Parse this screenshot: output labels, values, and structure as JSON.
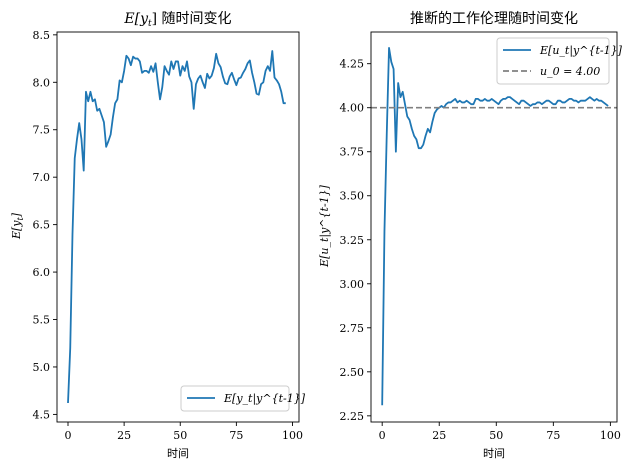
{
  "charts": [
    {
      "title": "E[y_t] 随时间变化",
      "title_math": "E[y",
      "title_sub": "t",
      "title_rest": "] 随时间变化",
      "xlabel": "时间",
      "ylabel": "E[y_t]",
      "ylabel_parts": {
        "main": "E[y",
        "sub": "t",
        "end": "]"
      },
      "legend": {
        "label": "E[y_t|y^{t-1}]",
        "placement": "lower-right"
      },
      "xticks": [
        "0",
        "25",
        "50",
        "75",
        "100"
      ],
      "yticks": [
        "4.5",
        "5.0",
        "5.5",
        "6.0",
        "6.5",
        "7.0",
        "7.5",
        "8.0",
        "8.5"
      ]
    },
    {
      "title": "推断的工作伦理随时间变化",
      "xlabel": "时间",
      "ylabel": "E[u_t|y^{t-1}]",
      "legend": {
        "label": "E[u_t|y^{t-1}]",
        "ref_label": "u_0 = 4.00",
        "placement": "upper-right"
      },
      "xticks": [
        "0",
        "25",
        "50",
        "75",
        "100"
      ],
      "yticks": [
        "2.25",
        "2.50",
        "2.75",
        "3.00",
        "3.25",
        "3.50",
        "3.75",
        "4.00",
        "4.25"
      ]
    }
  ],
  "chart_data": [
    {
      "type": "line",
      "title": "E[y_t] 随时间变化",
      "xlabel": "时间",
      "ylabel": "E[y_t]",
      "xlim": [
        -4.9,
        102.9
      ],
      "ylim": [
        4.42,
        8.53
      ],
      "grid": false,
      "legend_placement": "lower-right",
      "color": "#1f77b4",
      "series": [
        {
          "name": "E[y_t|y^{t-1}]",
          "x": [
            0,
            1,
            2,
            3,
            4,
            5,
            6,
            7,
            8,
            9,
            10,
            11,
            12,
            13,
            14,
            15,
            16,
            17,
            18,
            19,
            20,
            21,
            22,
            23,
            24,
            25,
            26,
            27,
            28,
            29,
            30,
            31,
            32,
            33,
            34,
            35,
            36,
            37,
            38,
            39,
            40,
            41,
            42,
            43,
            44,
            45,
            46,
            47,
            48,
            49,
            50,
            51,
            52,
            53,
            54,
            55,
            56,
            57,
            58,
            59,
            60,
            61,
            62,
            63,
            64,
            65,
            66,
            67,
            68,
            69,
            70,
            71,
            72,
            73,
            74,
            75,
            76,
            77,
            78,
            79,
            80,
            81,
            82,
            83,
            84,
            85,
            86,
            87,
            88,
            89,
            90,
            91,
            92,
            93,
            94,
            95,
            96,
            97
          ],
          "y": [
            4.62,
            5.2,
            6.4,
            7.2,
            7.4,
            7.57,
            7.4,
            7.07,
            7.9,
            7.8,
            7.9,
            7.8,
            7.82,
            7.7,
            7.72,
            7.65,
            7.58,
            7.32,
            7.38,
            7.45,
            7.63,
            7.78,
            7.82,
            8.02,
            8.0,
            8.12,
            8.28,
            8.25,
            8.18,
            8.27,
            8.25,
            8.25,
            8.22,
            8.1,
            8.12,
            8.12,
            8.1,
            8.17,
            8.11,
            8.2,
            8.0,
            7.82,
            7.95,
            8.17,
            8.12,
            8.08,
            8.22,
            8.14,
            8.22,
            8.22,
            8.07,
            8.17,
            8.12,
            8.22,
            8.06,
            8.0,
            7.72,
            7.98,
            8.04,
            8.07,
            8.0,
            7.94,
            8.09,
            8.04,
            8.07,
            8.15,
            8.3,
            8.2,
            8.16,
            8.06,
            7.99,
            7.98,
            8.06,
            8.1,
            8.03,
            7.97,
            8.04,
            8.05,
            8.1,
            8.14,
            8.2,
            8.23,
            8.1,
            8.0,
            7.88,
            7.87,
            7.98,
            8.0,
            8.12,
            8.17,
            8.12,
            8.33,
            8.05,
            8.02,
            7.98,
            7.9,
            7.78,
            7.78
          ]
        }
      ]
    },
    {
      "type": "line",
      "title": "推断的工作伦理随时间变化",
      "xlabel": "时间",
      "ylabel": "E[u_t|y^{t-1}]",
      "xlim": [
        -4.9,
        102.9
      ],
      "ylim": [
        2.215,
        4.43
      ],
      "grid": false,
      "legend_placement": "upper-right",
      "color": "#1f77b4",
      "reference_line": {
        "name": "u_0 = 4.00",
        "y": 4.0,
        "color": "#808080",
        "style": "dashed"
      },
      "series": [
        {
          "name": "E[u_t|y^{t-1}]",
          "x": [
            0,
            1,
            2,
            3,
            4,
            5,
            6,
            7,
            8,
            9,
            10,
            11,
            12,
            13,
            14,
            15,
            16,
            17,
            18,
            19,
            20,
            21,
            22,
            23,
            24,
            25,
            26,
            27,
            28,
            29,
            30,
            31,
            32,
            33,
            34,
            35,
            36,
            37,
            38,
            39,
            40,
            41,
            42,
            43,
            44,
            45,
            46,
            47,
            48,
            49,
            50,
            51,
            52,
            53,
            54,
            55,
            56,
            57,
            58,
            59,
            60,
            61,
            62,
            63,
            64,
            65,
            66,
            67,
            68,
            69,
            70,
            71,
            72,
            73,
            74,
            75,
            76,
            77,
            78,
            79,
            80,
            81,
            82,
            83,
            84,
            85,
            86,
            87,
            88,
            89,
            90,
            91,
            92,
            93,
            94,
            95,
            96,
            97,
            98,
            99
          ],
          "y": [
            2.31,
            3.3,
            3.85,
            4.34,
            4.26,
            4.22,
            3.75,
            4.14,
            4.06,
            4.09,
            4.02,
            3.95,
            3.93,
            3.88,
            3.84,
            3.82,
            3.77,
            3.77,
            3.79,
            3.84,
            3.88,
            3.86,
            3.92,
            3.97,
            3.99,
            4.0,
            4.01,
            4.0,
            4.02,
            4.03,
            4.03,
            4.04,
            4.05,
            4.03,
            4.04,
            4.03,
            4.03,
            4.04,
            4.03,
            4.02,
            4.02,
            4.05,
            4.05,
            4.04,
            4.04,
            4.05,
            4.04,
            4.04,
            4.05,
            4.04,
            4.03,
            4.02,
            4.04,
            4.05,
            4.05,
            4.06,
            4.06,
            4.05,
            4.04,
            4.03,
            4.02,
            4.04,
            4.04,
            4.03,
            4.02,
            4.01,
            4.02,
            4.02,
            4.03,
            4.03,
            4.02,
            4.03,
            4.04,
            4.04,
            4.03,
            4.02,
            4.02,
            4.04,
            4.04,
            4.03,
            4.03,
            4.04,
            4.05,
            4.05,
            4.04,
            4.04,
            4.03,
            4.04,
            4.04,
            4.04,
            4.05,
            4.06,
            4.05,
            4.04,
            4.05,
            4.04,
            4.04,
            4.03,
            4.02,
            4.01
          ]
        }
      ]
    }
  ]
}
